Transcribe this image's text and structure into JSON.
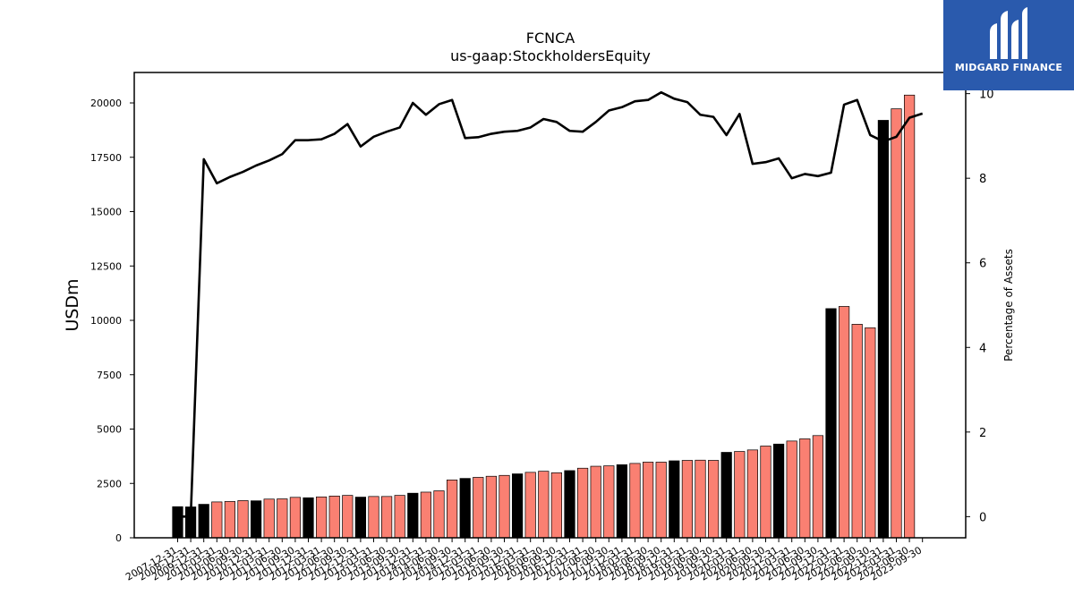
{
  "chart_data": {
    "type": "bar",
    "title": "FCNCA",
    "subtitle": "us-gaap:StockholdersEquity",
    "ylabel": "USDm",
    "y2label": "Percentage of Assets",
    "ylim": [
      0,
      21400
    ],
    "y2lim": [
      -0.5,
      10.5
    ],
    "yticks": [
      0,
      2500,
      5000,
      7500,
      10000,
      12500,
      15000,
      17500,
      20000
    ],
    "y2ticks": [
      0,
      2,
      4,
      6,
      8,
      10
    ],
    "grid": false,
    "legend": "none",
    "categories": [
      "2007-12-31",
      "2008-12-31",
      "2009-12-31",
      "2010-03-31",
      "2010-06-30",
      "2010-09-30",
      "2010-12-31",
      "2011-03-31",
      "2011-06-30",
      "2011-09-30",
      "2011-12-31",
      "2012-03-31",
      "2012-06-30",
      "2012-09-30",
      "2012-12-31",
      "2013-03-31",
      "2013-06-30",
      "2013-09-30",
      "2013-12-31",
      "2014-03-31",
      "2014-06-30",
      "2014-09-30",
      "2014-12-31",
      "2015-03-31",
      "2015-06-30",
      "2015-09-30",
      "2015-12-31",
      "2016-03-31",
      "2016-06-30",
      "2016-09-30",
      "2016-12-31",
      "2017-03-31",
      "2017-06-30",
      "2017-09-30",
      "2017-12-31",
      "2018-03-31",
      "2018-06-30",
      "2018-09-30",
      "2018-12-31",
      "2019-03-31",
      "2019-06-30",
      "2019-09-30",
      "2019-12-31",
      "2020-03-31",
      "2020-06-30",
      "2020-09-30",
      "2020-12-31",
      "2021-03-31",
      "2021-06-30",
      "2021-09-30",
      "2021-12-31",
      "2022-03-31",
      "2022-06-30",
      "2022-09-30",
      "2022-12-31",
      "2023-03-31",
      "2023-06-30",
      "2023-09-30"
    ],
    "series": [
      {
        "type": "bar",
        "values": [
          1430,
          1420,
          1540,
          1650,
          1670,
          1710,
          1700,
          1780,
          1790,
          1860,
          1840,
          1880,
          1920,
          1950,
          1870,
          1900,
          1900,
          1950,
          2050,
          2100,
          2160,
          2660,
          2730,
          2780,
          2830,
          2870,
          2940,
          3010,
          3060,
          2990,
          3090,
          3200,
          3290,
          3310,
          3360,
          3420,
          3480,
          3480,
          3540,
          3560,
          3570,
          3560,
          3930,
          3970,
          4040,
          4220,
          4310,
          4450,
          4550,
          4700,
          10540,
          10640,
          9820,
          9660,
          19200,
          19730,
          20360,
          null
        ],
        "colors": [
          "#000000",
          "#000000",
          "#000000",
          "#fa8072",
          "#fa8072",
          "#fa8072",
          "#000000",
          "#fa8072",
          "#fa8072",
          "#fa8072",
          "#000000",
          "#fa8072",
          "#fa8072",
          "#fa8072",
          "#000000",
          "#fa8072",
          "#fa8072",
          "#fa8072",
          "#000000",
          "#fa8072",
          "#fa8072",
          "#fa8072",
          "#000000",
          "#fa8072",
          "#fa8072",
          "#fa8072",
          "#000000",
          "#fa8072",
          "#fa8072",
          "#fa8072",
          "#000000",
          "#fa8072",
          "#fa8072",
          "#fa8072",
          "#000000",
          "#fa8072",
          "#fa8072",
          "#fa8072",
          "#000000",
          "#fa8072",
          "#fa8072",
          "#fa8072",
          "#000000",
          "#fa8072",
          "#fa8072",
          "#fa8072",
          "#000000",
          "#fa8072",
          "#fa8072",
          "#fa8072",
          "#000000",
          "#fa8072",
          "#fa8072",
          "#fa8072",
          "#000000",
          "#fa8072",
          "#fa8072",
          "#fa8072"
        ]
      },
      {
        "type": "line",
        "axis": "right",
        "color": "#000000",
        "values": [
          0.0,
          0.0,
          8.45,
          7.88,
          8.03,
          8.15,
          8.3,
          8.42,
          8.57,
          8.9,
          8.9,
          8.92,
          9.05,
          9.28,
          8.75,
          8.98,
          9.1,
          9.2,
          9.78,
          9.5,
          9.75,
          9.85,
          8.95,
          8.97,
          9.05,
          9.1,
          9.12,
          9.2,
          9.4,
          9.33,
          9.12,
          9.1,
          9.33,
          9.6,
          9.68,
          9.82,
          9.85,
          10.03,
          9.88,
          9.8,
          9.5,
          9.45,
          9.02,
          9.52,
          8.34,
          8.38,
          8.47,
          8.0,
          8.1,
          8.05,
          8.13,
          9.74,
          9.85,
          9.02,
          8.87,
          8.98,
          9.43,
          9.53
        ]
      }
    ]
  },
  "logo": {
    "text": "MIDGARD FINANCE",
    "icon": "midgard-logo-icon"
  }
}
